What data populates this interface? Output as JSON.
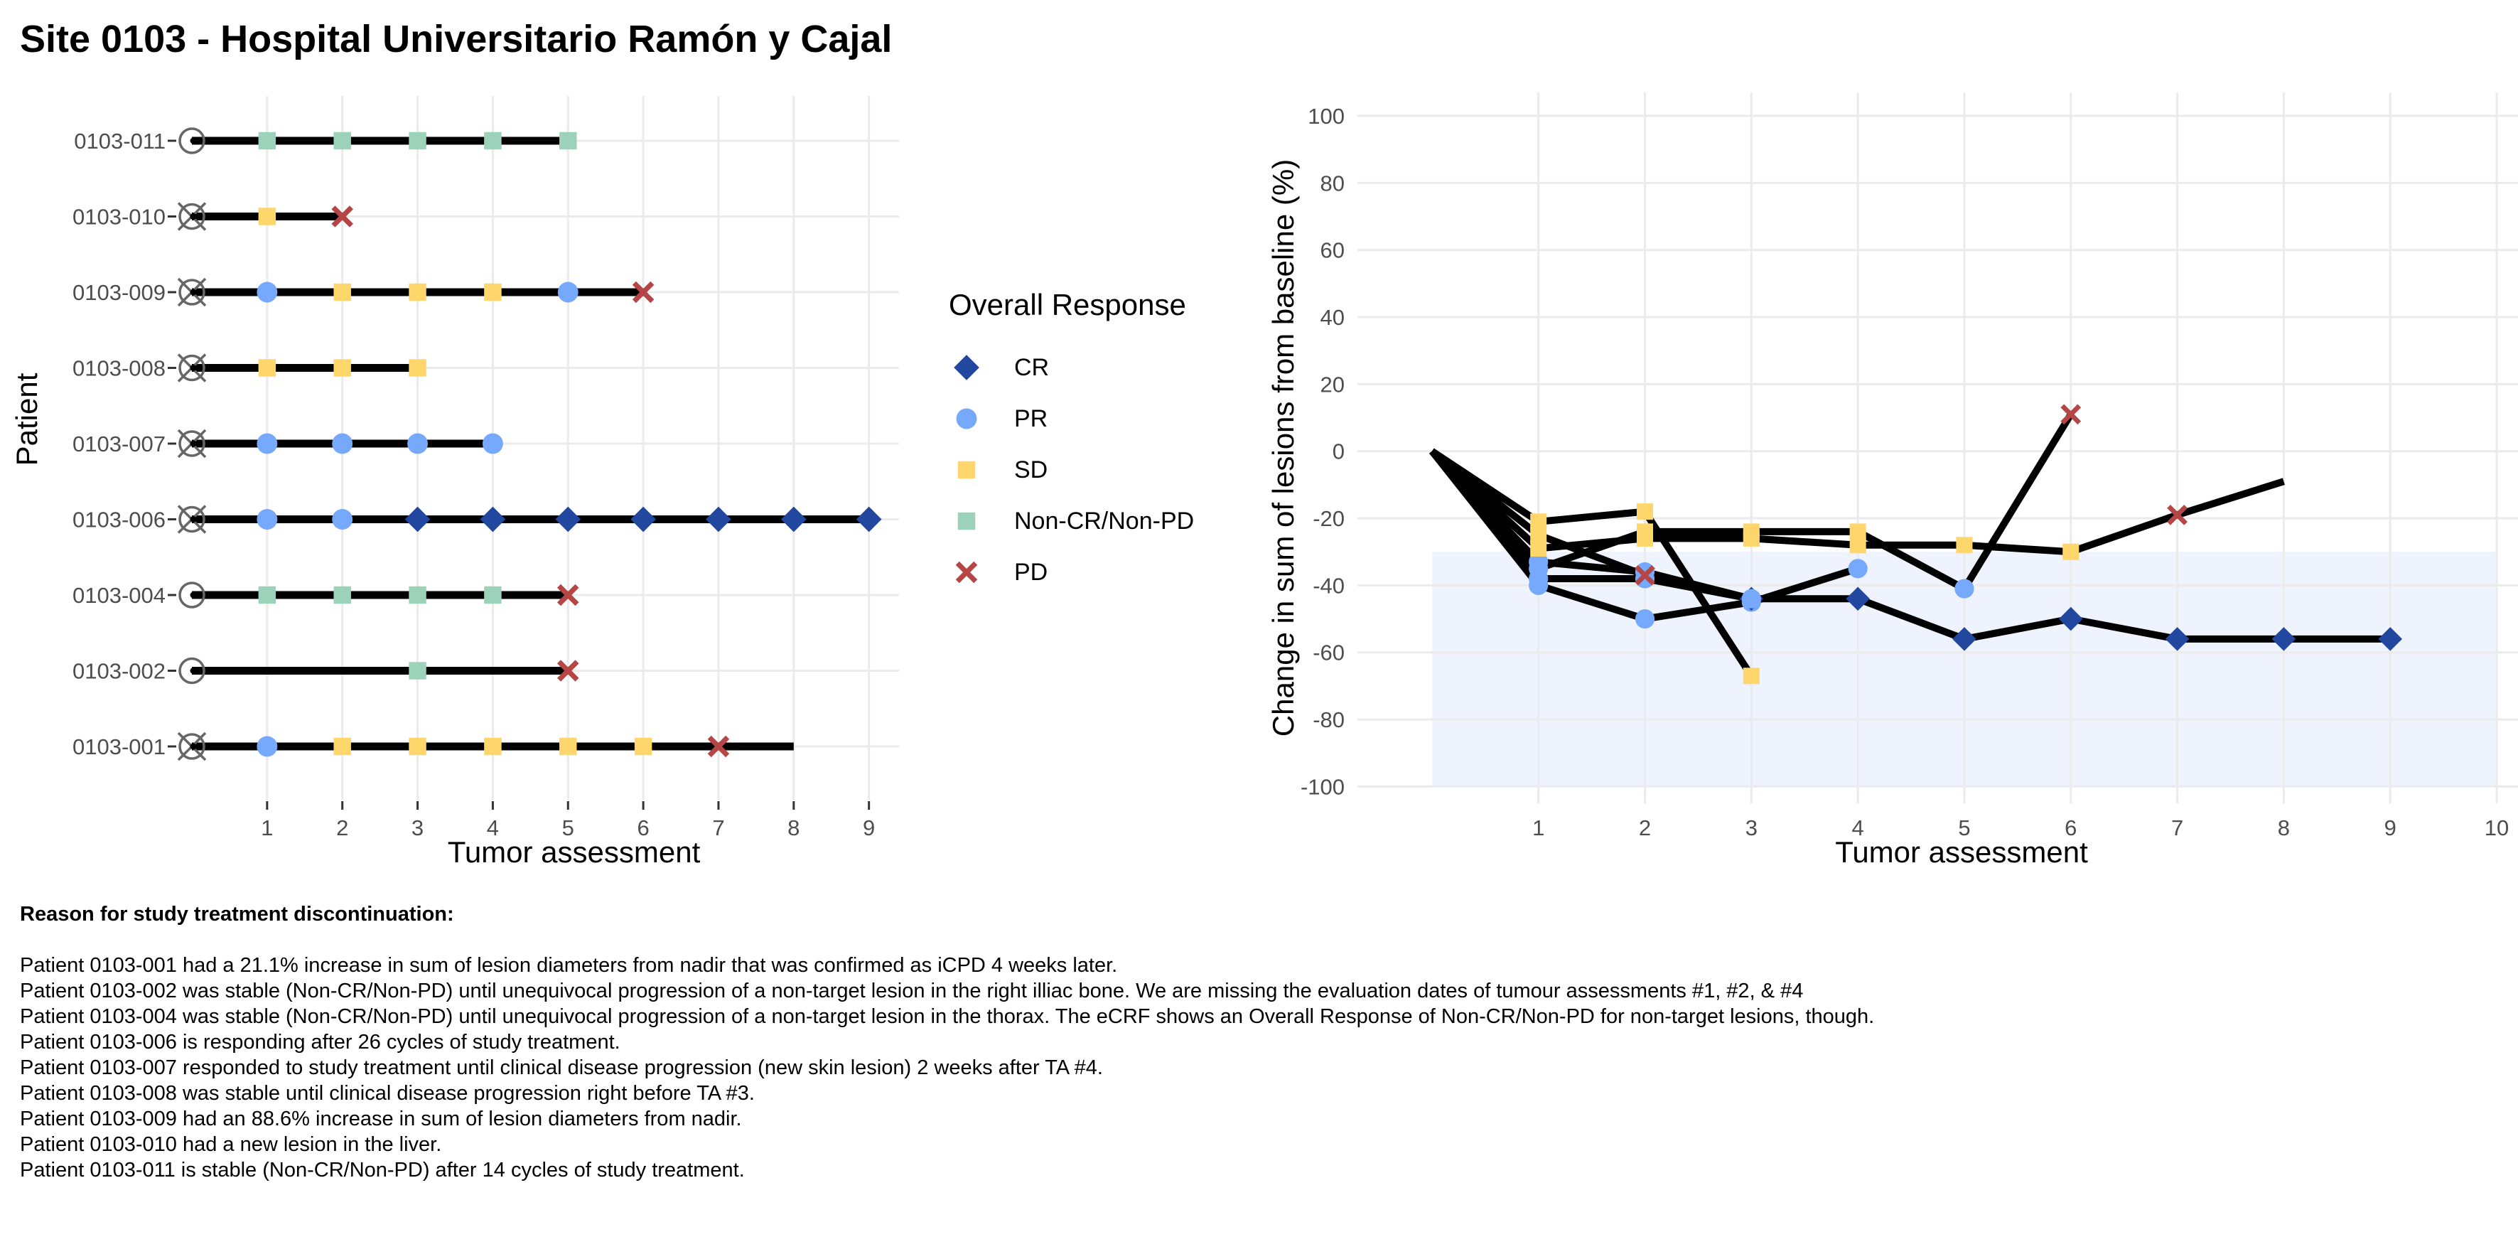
{
  "title": "Site 0103 - Hospital Universitario Ramón y Cajal",
  "colors": {
    "CR": "#22479E",
    "PR": "#76A9FB",
    "SD": "#FFD66B",
    "Non-CR/Non-PD": "#9DD2BA",
    "PD": "#B64545",
    "line": "#000000",
    "grid": "#EBEBEB",
    "band": "#EEF3FD"
  },
  "legend": {
    "title": "Overall Response",
    "items": [
      {
        "label": "CR",
        "key": "CR",
        "shape": "diamond"
      },
      {
        "label": "PR",
        "key": "PR",
        "shape": "circle"
      },
      {
        "label": "SD",
        "key": "SD",
        "shape": "square"
      },
      {
        "label": "Non-CR/Non-PD",
        "key": "Non-CR/Non-PD",
        "shape": "square"
      },
      {
        "label": "PD",
        "key": "PD",
        "shape": "cross"
      }
    ]
  },
  "chart_data": [
    {
      "type": "swimmer",
      "xlabel": "Tumor assessment",
      "ylabel": "Patient",
      "xlim": [
        0,
        9.4
      ],
      "x_ticks": [
        1,
        2,
        3,
        4,
        5,
        6,
        7,
        8,
        9
      ],
      "grid": true,
      "patients": [
        {
          "id": "0103-011",
          "bar_end": 5,
          "discontinued": false,
          "assessments": [
            {
              "ta": 1,
              "r": "Non-CR/Non-PD"
            },
            {
              "ta": 2,
              "r": "Non-CR/Non-PD"
            },
            {
              "ta": 3,
              "r": "Non-CR/Non-PD"
            },
            {
              "ta": 4,
              "r": "Non-CR/Non-PD"
            },
            {
              "ta": 5,
              "r": "Non-CR/Non-PD"
            }
          ]
        },
        {
          "id": "0103-010",
          "bar_end": 2,
          "discontinued": true,
          "assessments": [
            {
              "ta": 1,
              "r": "SD"
            },
            {
              "ta": 2,
              "r": "PD"
            }
          ]
        },
        {
          "id": "0103-009",
          "bar_end": 6,
          "discontinued": true,
          "assessments": [
            {
              "ta": 1,
              "r": "PR"
            },
            {
              "ta": 2,
              "r": "SD"
            },
            {
              "ta": 3,
              "r": "SD"
            },
            {
              "ta": 4,
              "r": "SD"
            },
            {
              "ta": 5,
              "r": "PR"
            },
            {
              "ta": 6,
              "r": "PD"
            }
          ]
        },
        {
          "id": "0103-008",
          "bar_end": 3,
          "discontinued": true,
          "assessments": [
            {
              "ta": 1,
              "r": "SD"
            },
            {
              "ta": 2,
              "r": "SD"
            },
            {
              "ta": 3,
              "r": "SD"
            }
          ]
        },
        {
          "id": "0103-007",
          "bar_end": 4,
          "discontinued": true,
          "assessments": [
            {
              "ta": 1,
              "r": "PR"
            },
            {
              "ta": 2,
              "r": "PR"
            },
            {
              "ta": 3,
              "r": "PR"
            },
            {
              "ta": 4,
              "r": "PR"
            }
          ]
        },
        {
          "id": "0103-006",
          "bar_end": 9,
          "discontinued": true,
          "assessments": [
            {
              "ta": 1,
              "r": "PR"
            },
            {
              "ta": 2,
              "r": "PR"
            },
            {
              "ta": 3,
              "r": "CR"
            },
            {
              "ta": 4,
              "r": "CR"
            },
            {
              "ta": 5,
              "r": "CR"
            },
            {
              "ta": 6,
              "r": "CR"
            },
            {
              "ta": 7,
              "r": "CR"
            },
            {
              "ta": 8,
              "r": "CR"
            },
            {
              "ta": 9,
              "r": "CR"
            }
          ]
        },
        {
          "id": "0103-004",
          "bar_end": 5,
          "discontinued": false,
          "assessments": [
            {
              "ta": 1,
              "r": "Non-CR/Non-PD"
            },
            {
              "ta": 2,
              "r": "Non-CR/Non-PD"
            },
            {
              "ta": 3,
              "r": "Non-CR/Non-PD"
            },
            {
              "ta": 4,
              "r": "Non-CR/Non-PD"
            },
            {
              "ta": 5,
              "r": "PD"
            }
          ]
        },
        {
          "id": "0103-002",
          "bar_end": 5,
          "discontinued": false,
          "assessments": [
            {
              "ta": 3,
              "r": "Non-CR/Non-PD"
            },
            {
              "ta": 5,
              "r": "PD"
            }
          ]
        },
        {
          "id": "0103-001",
          "bar_end": 8,
          "discontinued": true,
          "assessments": [
            {
              "ta": 1,
              "r": "PR"
            },
            {
              "ta": 2,
              "r": "SD"
            },
            {
              "ta": 3,
              "r": "SD"
            },
            {
              "ta": 4,
              "r": "SD"
            },
            {
              "ta": 5,
              "r": "SD"
            },
            {
              "ta": 6,
              "r": "SD"
            },
            {
              "ta": 7,
              "r": "PD"
            }
          ]
        }
      ]
    },
    {
      "type": "line",
      "xlabel": "Tumor assessment",
      "ylabel": "Change in sum of lesions from baseline (%)",
      "xlim": [
        -0.7,
        10.2
      ],
      "ylim": [
        -105,
        107
      ],
      "x_ticks": [
        1,
        2,
        3,
        4,
        5,
        6,
        7,
        8,
        9,
        10
      ],
      "y_ticks": [
        -100,
        -80,
        -60,
        -40,
        -20,
        0,
        20,
        40,
        60,
        80,
        100
      ],
      "grid": true,
      "reference_band": {
        "x": [
          0,
          10
        ],
        "y": [
          -100,
          -30
        ]
      },
      "series": [
        {
          "points": [
            [
              0,
              0
            ],
            [
              1,
              -40
            ],
            [
              2,
              -50
            ],
            [
              3,
              -45
            ],
            [
              4,
              -35
            ]
          ],
          "responses": [
            null,
            "PR",
            "PR",
            "PR",
            "PR"
          ]
        },
        {
          "points": [
            [
              0,
              0
            ],
            [
              1,
              -33
            ],
            [
              2,
              -36
            ],
            [
              3,
              -44
            ],
            [
              4,
              -44
            ],
            [
              5,
              -56
            ],
            [
              6,
              -50
            ],
            [
              7,
              -56
            ],
            [
              8,
              -56
            ],
            [
              9,
              -56
            ]
          ],
          "responses": [
            null,
            "PR",
            "PR",
            "CR",
            "CR",
            "CR",
            "CR",
            "CR",
            "CR",
            "CR"
          ]
        },
        {
          "points": [
            [
              0,
              0
            ],
            [
              1,
              -38
            ],
            [
              2,
              -38
            ],
            [
              3,
              -44
            ]
          ],
          "responses": [
            null,
            "PR",
            "PR",
            "PR"
          ]
        },
        {
          "points": [
            [
              0,
              0
            ],
            [
              1,
              -21
            ],
            [
              2,
              -18
            ],
            [
              3,
              -67
            ]
          ],
          "responses": [
            null,
            "SD",
            "SD",
            "SD"
          ]
        },
        {
          "points": [
            [
              0,
              0
            ],
            [
              1,
              -25
            ],
            [
              2,
              -37
            ]
          ],
          "responses": [
            null,
            "SD",
            "PD"
          ]
        },
        {
          "points": [
            [
              0,
              0
            ],
            [
              1,
              -29
            ],
            [
              2,
              -26
            ],
            [
              3,
              -26
            ],
            [
              4,
              -28
            ],
            [
              5,
              -28
            ],
            [
              6,
              -30
            ],
            [
              7,
              -19
            ],
            [
              8,
              -9
            ]
          ],
          "responses": [
            null,
            "SD",
            "SD",
            "SD",
            "SD",
            "SD",
            "SD",
            "PD",
            null
          ]
        },
        {
          "points": [
            [
              0,
              0
            ],
            [
              1,
              -35
            ],
            [
              2,
              -24
            ],
            [
              3,
              -24
            ],
            [
              4,
              -24
            ],
            [
              5,
              -41
            ],
            [
              6,
              11
            ]
          ],
          "responses": [
            null,
            "PR",
            "SD",
            "SD",
            "SD",
            "PR",
            "PD"
          ]
        }
      ]
    }
  ],
  "notes": {
    "heading": "Reason for study treatment discontinuation:",
    "lines": [
      "Patient 0103-001 had a 21.1% increase in sum of lesion diameters from nadir that was confirmed as iCPD 4 weeks later.",
      "Patient 0103-002 was stable (Non-CR/Non-PD) until unequivocal progression of a non-target lesion in the right illiac bone. We are missing the evaluation dates of tumour assessments #1, #2, & #4",
      "Patient 0103-004 was stable (Non-CR/Non-PD) until unequivocal progression of a non-target lesion in the thorax. The eCRF shows an Overall Response of Non-CR/Non-PD for non-target lesions, though.",
      "Patient 0103-006 is responding after 26 cycles of study treatment.",
      "Patient 0103-007 responded to study treatment until clinical disease progression (new skin lesion) 2 weeks after TA #4.",
      "Patient 0103-008 was stable until clinical disease progression right before TA #3.",
      "Patient 0103-009 had an 88.6% increase in sum of lesion diameters from nadir.",
      "Patient 0103-010 had a new lesion in the liver.",
      "Patient 0103-011 is stable (Non-CR/Non-PD) after 14 cycles of study treatment."
    ]
  }
}
